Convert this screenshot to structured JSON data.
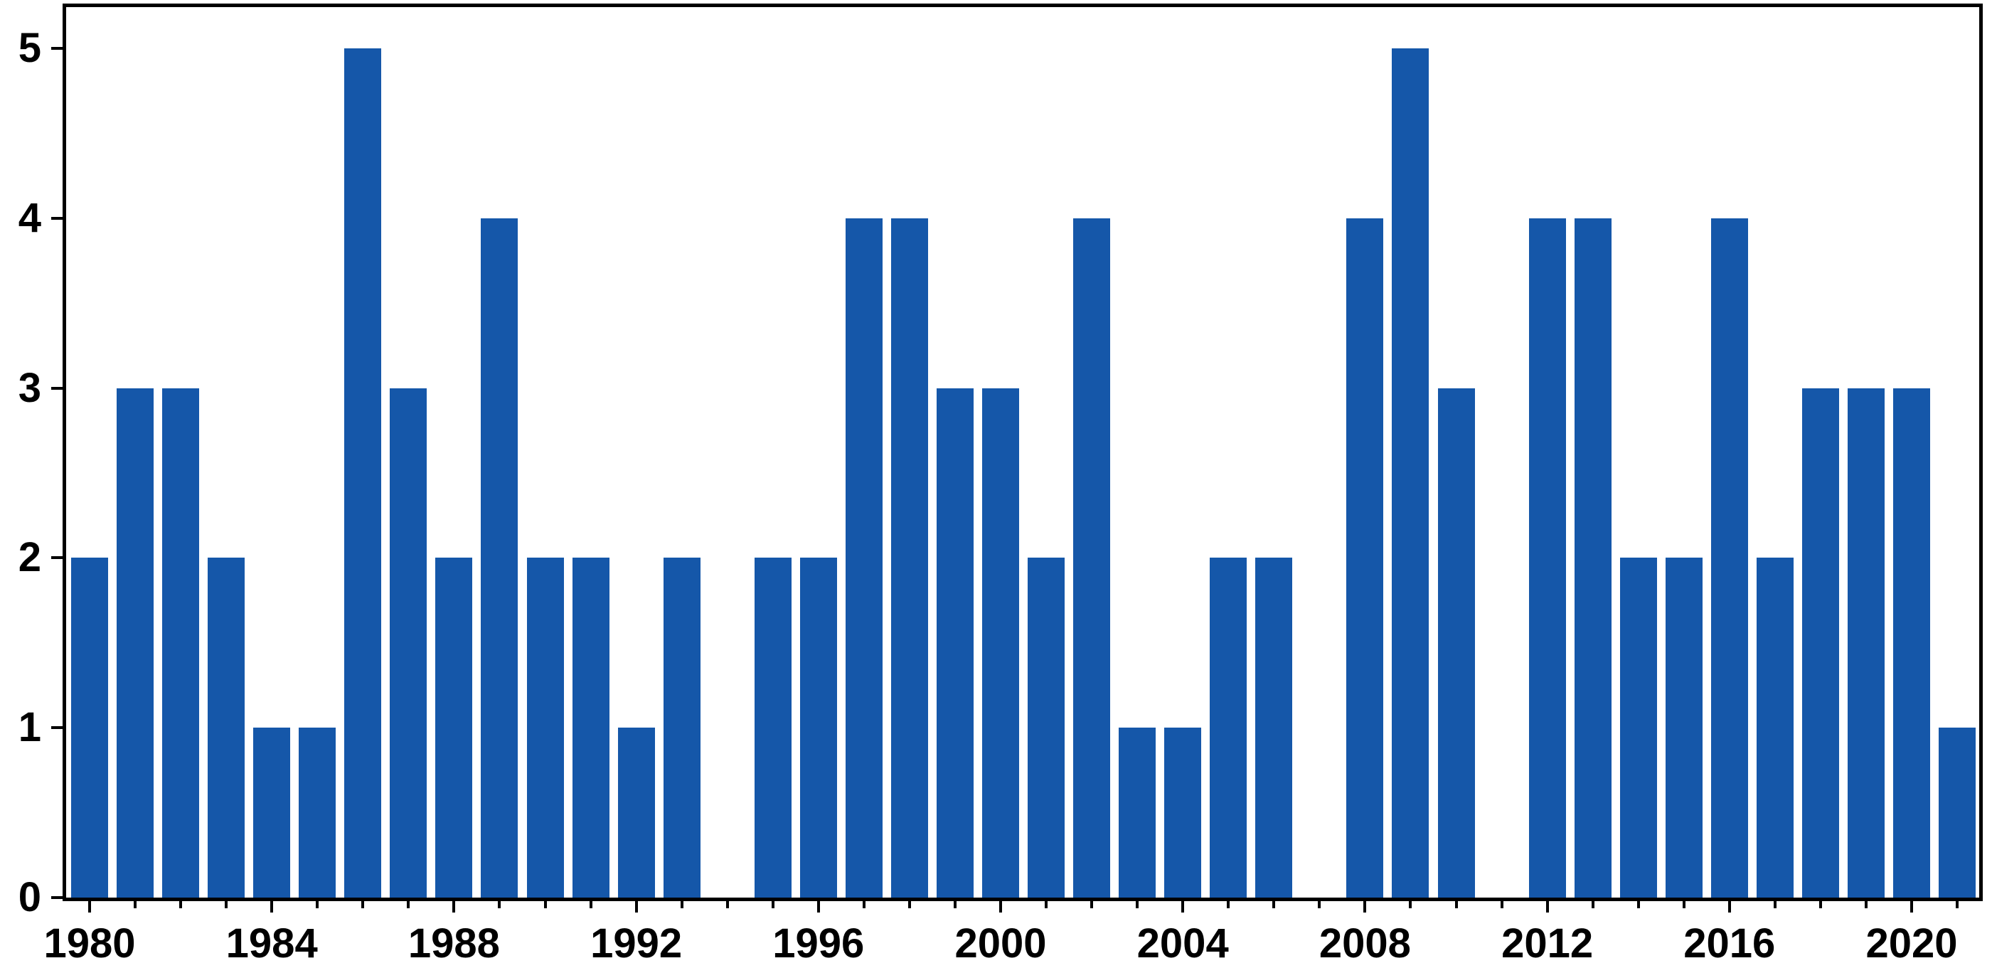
{
  "chart_data": {
    "type": "bar",
    "title": "",
    "xlabel": "",
    "ylabel": "",
    "categories": [
      1980,
      1981,
      1982,
      1983,
      1984,
      1985,
      1986,
      1987,
      1988,
      1989,
      1990,
      1991,
      1992,
      1993,
      1994,
      1995,
      1996,
      1997,
      1998,
      1999,
      2000,
      2001,
      2002,
      2003,
      2004,
      2005,
      2006,
      2007,
      2008,
      2009,
      2010,
      2011,
      2012,
      2013,
      2014,
      2015,
      2016,
      2017,
      2018,
      2019,
      2020,
      2021
    ],
    "values": [
      2,
      3,
      3,
      2,
      1,
      1,
      5,
      3,
      2,
      4,
      2,
      2,
      1,
      2,
      0,
      2,
      2,
      4,
      4,
      3,
      3,
      2,
      4,
      1,
      1,
      2,
      2,
      0,
      4,
      5,
      3,
      0,
      4,
      4,
      2,
      2,
      4,
      2,
      3,
      3,
      3,
      1
    ],
    "ylim": [
      0,
      5
    ],
    "yticks": [
      0,
      1,
      2,
      3,
      4,
      5
    ],
    "xtick_labels": [
      "1980",
      "1984",
      "1988",
      "1992",
      "1996",
      "2000",
      "2004",
      "2008",
      "2012",
      "2016",
      "2020"
    ],
    "xtick_label_interval_years": 4,
    "minor_xticks_every_year": true,
    "grid": false,
    "bar_color": "#1557a9",
    "axis_color": "#000000",
    "background_color": "#ffffff"
  }
}
